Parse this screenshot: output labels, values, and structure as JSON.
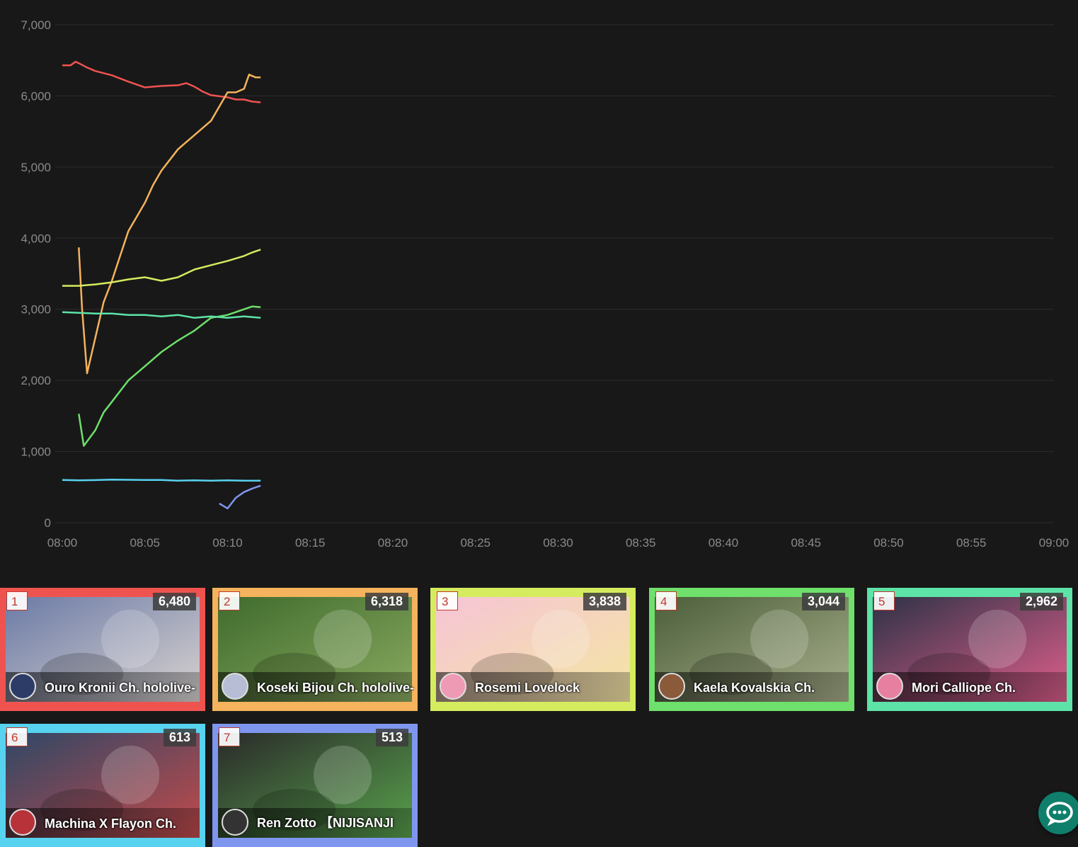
{
  "chart_data": {
    "type": "line",
    "title": "",
    "xlabel": "",
    "ylabel": "",
    "x_ticks": [
      "08:00",
      "08:05",
      "08:10",
      "08:15",
      "08:20",
      "08:25",
      "08:30",
      "08:35",
      "08:40",
      "08:45",
      "08:50",
      "08:55",
      "09:00"
    ],
    "x_range_minutes": [
      0,
      60
    ],
    "y_ticks": [
      "0",
      "1,000",
      "2,000",
      "3,000",
      "4,000",
      "5,000",
      "6,000",
      "7,000"
    ],
    "ylim": [
      0,
      7000
    ],
    "grid": true,
    "legend": "none",
    "series": [
      {
        "color": "#ef5350",
        "points": [
          [
            0,
            6430
          ],
          [
            0.5,
            6430
          ],
          [
            0.8,
            6480
          ],
          [
            1,
            6460
          ],
          [
            1.5,
            6400
          ],
          [
            2,
            6350
          ],
          [
            3,
            6290
          ],
          [
            4,
            6200
          ],
          [
            5,
            6120
          ],
          [
            6,
            6140
          ],
          [
            7,
            6150
          ],
          [
            7.5,
            6180
          ],
          [
            8,
            6130
          ],
          [
            8.5,
            6060
          ],
          [
            9,
            6010
          ],
          [
            10,
            5980
          ],
          [
            10.5,
            5950
          ],
          [
            11,
            5950
          ],
          [
            11.5,
            5920
          ],
          [
            12,
            5910
          ]
        ]
      },
      {
        "color": "#f4b35c",
        "points": [
          [
            1,
            3870
          ],
          [
            1.2,
            3000
          ],
          [
            1.5,
            2100
          ],
          [
            2,
            2600
          ],
          [
            2.5,
            3100
          ],
          [
            3,
            3400
          ],
          [
            3.5,
            3750
          ],
          [
            4,
            4100
          ],
          [
            4.5,
            4300
          ],
          [
            5,
            4500
          ],
          [
            5.5,
            4750
          ],
          [
            6,
            4950
          ],
          [
            6.5,
            5100
          ],
          [
            7,
            5250
          ],
          [
            7.5,
            5350
          ],
          [
            8,
            5450
          ],
          [
            8.5,
            5550
          ],
          [
            9,
            5650
          ],
          [
            9.5,
            5850
          ],
          [
            10,
            6050
          ],
          [
            10.5,
            6050
          ],
          [
            11,
            6100
          ],
          [
            11.3,
            6300
          ],
          [
            11.7,
            6260
          ],
          [
            12,
            6260
          ]
        ]
      },
      {
        "color": "#d4ec5e",
        "points": [
          [
            0,
            3330
          ],
          [
            1,
            3330
          ],
          [
            2,
            3350
          ],
          [
            3,
            3380
          ],
          [
            4,
            3420
          ],
          [
            5,
            3450
          ],
          [
            6,
            3400
          ],
          [
            7,
            3450
          ],
          [
            8,
            3560
          ],
          [
            9,
            3620
          ],
          [
            10,
            3680
          ],
          [
            11,
            3750
          ],
          [
            11.5,
            3800
          ],
          [
            12,
            3840
          ]
        ]
      },
      {
        "color": "#6ee06b",
        "points": [
          [
            1,
            1530
          ],
          [
            1.3,
            1080
          ],
          [
            2,
            1300
          ],
          [
            2.5,
            1550
          ],
          [
            3,
            1700
          ],
          [
            3.5,
            1850
          ],
          [
            4,
            2000
          ],
          [
            5,
            2200
          ],
          [
            6,
            2400
          ],
          [
            7,
            2560
          ],
          [
            8,
            2700
          ],
          [
            9,
            2880
          ],
          [
            10,
            2920
          ],
          [
            11,
            3000
          ],
          [
            11.5,
            3040
          ],
          [
            12,
            3030
          ]
        ]
      },
      {
        "color": "#5de3a7",
        "points": [
          [
            0,
            2960
          ],
          [
            1,
            2950
          ],
          [
            2,
            2940
          ],
          [
            3,
            2940
          ],
          [
            4,
            2920
          ],
          [
            5,
            2920
          ],
          [
            6,
            2900
          ],
          [
            7,
            2920
          ],
          [
            8,
            2880
          ],
          [
            9,
            2900
          ],
          [
            10,
            2880
          ],
          [
            11,
            2900
          ],
          [
            12,
            2880
          ]
        ]
      },
      {
        "color": "#57d2ef",
        "points": [
          [
            0,
            600
          ],
          [
            1,
            595
          ],
          [
            2,
            598
          ],
          [
            3,
            605
          ],
          [
            4,
            602
          ],
          [
            5,
            600
          ],
          [
            6,
            600
          ],
          [
            7,
            590
          ],
          [
            8,
            595
          ],
          [
            9,
            590
          ],
          [
            10,
            595
          ],
          [
            11,
            590
          ],
          [
            12,
            590
          ]
        ]
      },
      {
        "color": "#7f96ee",
        "points": [
          [
            9.5,
            270
          ],
          [
            10,
            200
          ],
          [
            10.5,
            350
          ],
          [
            11,
            430
          ],
          [
            11.5,
            480
          ],
          [
            12,
            520
          ]
        ]
      }
    ]
  },
  "cards": [
    {
      "rank": "1",
      "viewers": "6,480",
      "name": "Ouro Kronii Ch. hololive-",
      "color": "#ef5350",
      "thumb1": "#6b7aa6",
      "thumb2": "#d9d3d0",
      "avatar": "#2c3c66"
    },
    {
      "rank": "2",
      "viewers": "6,318",
      "name": "Koseki Bijou Ch. hololive-",
      "color": "#f4b35c",
      "thumb1": "#3f6b2d",
      "thumb2": "#8aaa60",
      "avatar": "#b8bdd6"
    },
    {
      "rank": "3",
      "viewers": "3,838",
      "name": "Rosemi Lovelock",
      "color": "#d4ec5e",
      "thumb1": "#f6c4d6",
      "thumb2": "#f4e6a2",
      "avatar": "#ef9ab4"
    },
    {
      "rank": "4",
      "viewers": "3,044",
      "name": "Kaela Kovalskia Ch.",
      "color": "#6ee06b",
      "thumb1": "#4c5e3a",
      "thumb2": "#a9b08c",
      "avatar": "#8a5a3a"
    },
    {
      "rank": "5",
      "viewers": "2,962",
      "name": "Mori Calliope Ch.",
      "color": "#5de3a7",
      "thumb1": "#2d3246",
      "thumb2": "#e05f8c",
      "avatar": "#e67fa0"
    },
    {
      "rank": "6",
      "viewers": "613",
      "name": "Machina X Flayon Ch.",
      "color": "#57d2ef",
      "thumb1": "#2f4766",
      "thumb2": "#c24a4a",
      "avatar": "#b8323a"
    },
    {
      "rank": "7",
      "viewers": "513",
      "name": "Ren Zotto 【NIJISANJI",
      "color": "#7f96ee",
      "thumb1": "#2a2a2a",
      "thumb2": "#58a14c",
      "avatar": "#333333"
    }
  ],
  "chat_button": {
    "icon": "chat-bubble-icon",
    "color": "#0f7f6c"
  }
}
